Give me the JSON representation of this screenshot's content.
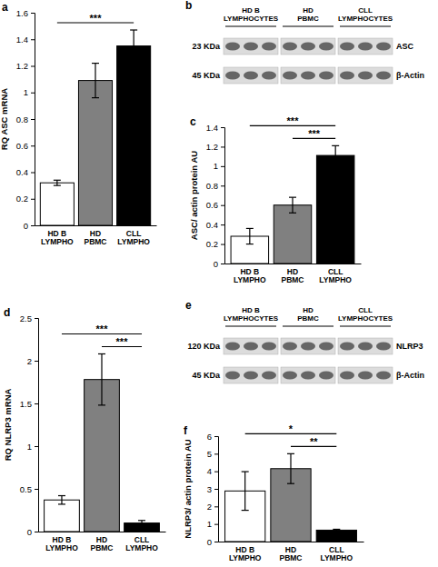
{
  "chart_data": [
    {
      "type": "bar",
      "panel": "a",
      "ylabel": "RQ ASC mRNA",
      "categories": [
        "HD B LYMPHO",
        "HD PBMC",
        "CLL LYMPHO"
      ],
      "values": [
        0.32,
        1.09,
        1.35
      ],
      "errors": [
        0.02,
        0.13,
        0.12
      ],
      "colors": [
        "#ffffff",
        "#808080",
        "#000000"
      ],
      "ylim": [
        0,
        1.6
      ],
      "yticks": [
        0,
        0.2,
        0.4,
        0.6,
        0.8,
        1,
        1.2,
        1.4,
        1.6
      ],
      "significance": [
        {
          "between": [
            "HD B LYMPHO",
            "CLL LYMPHO"
          ],
          "label": "***"
        }
      ]
    },
    {
      "type": "blot",
      "panel": "b",
      "groups": [
        "HD B LYMPHOCYTES",
        "HD PBMC",
        "CLL LYMPHOCYTES"
      ],
      "rows": [
        {
          "size": "23 KDa",
          "label": "ASC"
        },
        {
          "size": "45 KDa",
          "label": "β-Actin"
        }
      ]
    },
    {
      "type": "bar",
      "panel": "c",
      "ylabel": "ASC/ actin protein AU",
      "categories": [
        "HD B LYMPHO",
        "HD PBMC",
        "CLL LYMPHO"
      ],
      "values": [
        0.28,
        0.6,
        1.11
      ],
      "errors": [
        0.08,
        0.08,
        0.1
      ],
      "colors": [
        "#ffffff",
        "#808080",
        "#000000"
      ],
      "ylim": [
        0,
        1.4
      ],
      "yticks": [
        0,
        0.2,
        0.4,
        0.6,
        0.8,
        1,
        1.2,
        1.4
      ],
      "significance": [
        {
          "between": [
            "HD B LYMPHO",
            "CLL LYMPHO"
          ],
          "label": "***"
        },
        {
          "between": [
            "HD PBMC",
            "CLL LYMPHO"
          ],
          "label": "***"
        }
      ]
    },
    {
      "type": "bar",
      "panel": "d",
      "ylabel": "RQ NLRP3 mRNA",
      "categories": [
        "HD B LYMPHO",
        "HD PBMC",
        "CLL LYMPHO"
      ],
      "values": [
        0.37,
        1.78,
        0.1
      ],
      "errors": [
        0.05,
        0.3,
        0.03
      ],
      "colors": [
        "#ffffff",
        "#808080",
        "#000000"
      ],
      "ylim": [
        0,
        2.5
      ],
      "yticks": [
        0,
        0.5,
        1,
        1.5,
        2,
        2.5
      ],
      "significance": [
        {
          "between": [
            "HD B LYMPHO",
            "CLL LYMPHO"
          ],
          "label": "***"
        },
        {
          "between": [
            "HD PBMC",
            "CLL LYMPHO"
          ],
          "label": "***"
        }
      ]
    },
    {
      "type": "blot",
      "panel": "e",
      "groups": [
        "HD B LYMPHOCYTES",
        "HD PBMC",
        "CLL LYMPHOCYTES"
      ],
      "rows": [
        {
          "size": "120 KDa",
          "label": "NLRP3"
        },
        {
          "size": "45 KDa",
          "label": "β-Actin"
        }
      ]
    },
    {
      "type": "bar",
      "panel": "f",
      "ylabel": "NLRP3/ actin protein AU",
      "categories": [
        "HD B LYMPHO",
        "HD PBMC",
        "CLL LYMPHO"
      ],
      "values": [
        2.88,
        4.15,
        0.65
      ],
      "errors": [
        1.1,
        0.85,
        0.05
      ],
      "colors": [
        "#ffffff",
        "#808080",
        "#000000"
      ],
      "ylim": [
        0,
        6
      ],
      "yticks": [
        0,
        1,
        2,
        3,
        4,
        5,
        6
      ],
      "significance": [
        {
          "between": [
            "HD B LYMPHO",
            "CLL LYMPHO"
          ],
          "label": "*"
        },
        {
          "between": [
            "HD PBMC",
            "CLL LYMPHO"
          ],
          "label": "**"
        }
      ]
    }
  ]
}
